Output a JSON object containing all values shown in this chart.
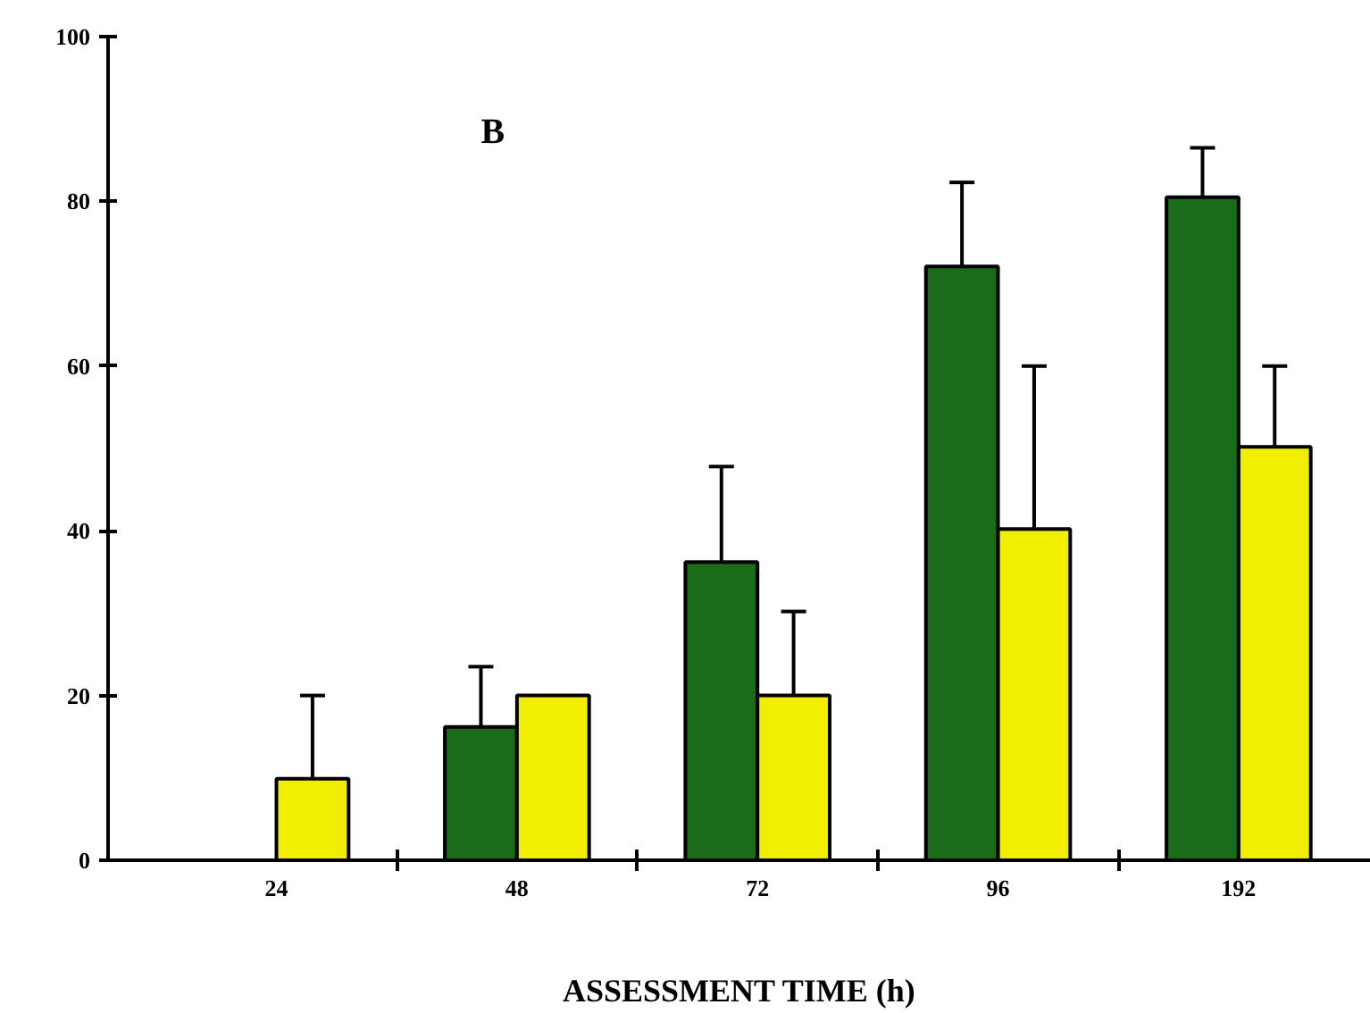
{
  "chart_data": {
    "type": "bar",
    "xlabel": "ASSESSMENT TIME (h)",
    "annotations": [
      "B"
    ],
    "categories": [
      "24",
      "48",
      "72",
      "96",
      "192"
    ],
    "series": [
      {
        "color": "#1a6b1a",
        "values": [
          null,
          16.2,
          36.2,
          72.1,
          80.5
        ],
        "errors": [
          null,
          [
            16.2,
            23.5
          ],
          [
            36.2,
            47.8
          ],
          [
            72.1,
            82.3
          ],
          [
            80.5,
            86.5
          ]
        ]
      },
      {
        "color": "#f2ee00",
        "values": [
          9.9,
          20,
          20,
          40.2,
          50.2
        ],
        "errors": [
          [
            9.9,
            20
          ],
          null,
          [
            20,
            30.2
          ],
          [
            40.2,
            60
          ],
          [
            50.2,
            60
          ]
        ]
      }
    ],
    "ylim": [
      0,
      100
    ],
    "yticks": [
      0,
      20,
      40,
      60,
      80,
      100
    ],
    "grid": false
  }
}
